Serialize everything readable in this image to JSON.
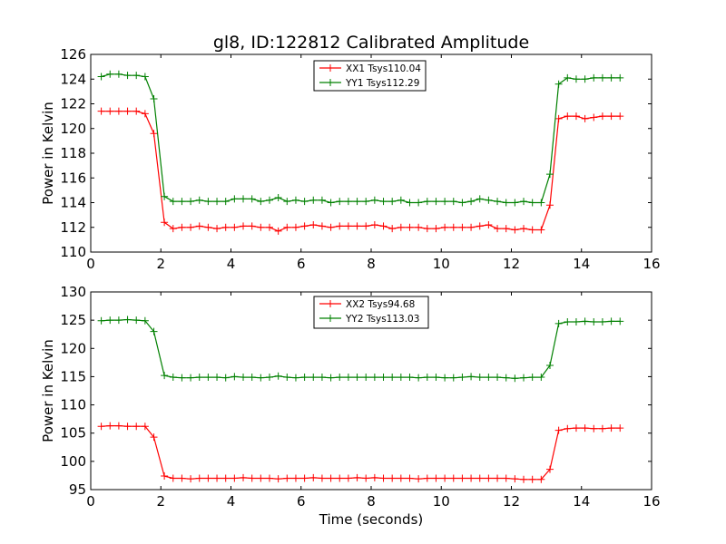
{
  "figure": {
    "title": "gl8, ID:122812 Calibrated Amplitude",
    "xlabel": "Time (seconds)"
  },
  "chart_data": [
    {
      "type": "line",
      "ylabel": "Power in Kelvin",
      "xlim": [
        0,
        16
      ],
      "ylim": [
        110,
        126
      ],
      "xticks": [
        0,
        2,
        4,
        6,
        8,
        10,
        12,
        14,
        16
      ],
      "yticks": [
        110,
        112,
        114,
        116,
        118,
        120,
        122,
        124,
        126
      ],
      "grid": false,
      "legend_position": "top-center",
      "x": [
        0.3,
        0.55,
        0.8,
        1.05,
        1.3,
        1.55,
        1.8,
        2.1,
        2.35,
        2.6,
        2.85,
        3.1,
        3.35,
        3.6,
        3.85,
        4.1,
        4.35,
        4.6,
        4.85,
        5.1,
        5.35,
        5.6,
        5.85,
        6.1,
        6.35,
        6.6,
        6.85,
        7.1,
        7.35,
        7.6,
        7.85,
        8.1,
        8.35,
        8.6,
        8.85,
        9.1,
        9.35,
        9.6,
        9.85,
        10.1,
        10.35,
        10.6,
        10.85,
        11.1,
        11.35,
        11.6,
        11.85,
        12.1,
        12.35,
        12.6,
        12.85,
        13.1,
        13.35,
        13.6,
        13.85,
        14.1,
        14.35,
        14.6,
        14.85,
        15.1
      ],
      "series": [
        {
          "name": "XX1 Tsys110.04",
          "color": "#ff0000",
          "values": [
            121.4,
            121.4,
            121.4,
            121.4,
            121.4,
            121.2,
            119.6,
            112.4,
            111.9,
            112.0,
            112.0,
            112.1,
            112.0,
            111.9,
            112.0,
            112.0,
            112.1,
            112.1,
            112.0,
            112.0,
            111.7,
            112.0,
            112.0,
            112.1,
            112.2,
            112.1,
            112.0,
            112.1,
            112.1,
            112.1,
            112.1,
            112.2,
            112.1,
            111.9,
            112.0,
            112.0,
            112.0,
            111.9,
            111.9,
            112.0,
            112.0,
            112.0,
            112.0,
            112.1,
            112.2,
            111.9,
            111.9,
            111.8,
            111.9,
            111.8,
            111.8,
            113.8,
            120.8,
            121.0,
            121.0,
            120.8,
            120.9,
            121.0,
            121.0,
            121.0
          ]
        },
        {
          "name": "YY1 Tsys112.29",
          "color": "#008000",
          "values": [
            124.2,
            124.4,
            124.4,
            124.3,
            124.3,
            124.2,
            122.4,
            114.5,
            114.1,
            114.1,
            114.1,
            114.2,
            114.1,
            114.1,
            114.1,
            114.3,
            114.3,
            114.3,
            114.1,
            114.2,
            114.4,
            114.1,
            114.2,
            114.1,
            114.2,
            114.2,
            114.0,
            114.1,
            114.1,
            114.1,
            114.1,
            114.2,
            114.1,
            114.1,
            114.2,
            114.0,
            114.0,
            114.1,
            114.1,
            114.1,
            114.1,
            114.0,
            114.1,
            114.3,
            114.2,
            114.1,
            114.0,
            114.0,
            114.1,
            114.0,
            114.0,
            116.3,
            123.6,
            124.1,
            124.0,
            124.0,
            124.1,
            124.1,
            124.1,
            124.1
          ]
        }
      ]
    },
    {
      "type": "line",
      "ylabel": "Power in Kelvin",
      "xlim": [
        0,
        16
      ],
      "ylim": [
        95,
        130
      ],
      "xticks": [
        0,
        2,
        4,
        6,
        8,
        10,
        12,
        14,
        16
      ],
      "yticks": [
        95,
        100,
        105,
        110,
        115,
        120,
        125,
        130
      ],
      "grid": false,
      "legend_position": "top-center",
      "x": [
        0.3,
        0.55,
        0.8,
        1.05,
        1.3,
        1.55,
        1.8,
        2.1,
        2.35,
        2.6,
        2.85,
        3.1,
        3.35,
        3.6,
        3.85,
        4.1,
        4.35,
        4.6,
        4.85,
        5.1,
        5.35,
        5.6,
        5.85,
        6.1,
        6.35,
        6.6,
        6.85,
        7.1,
        7.35,
        7.6,
        7.85,
        8.1,
        8.35,
        8.6,
        8.85,
        9.1,
        9.35,
        9.6,
        9.85,
        10.1,
        10.35,
        10.6,
        10.85,
        11.1,
        11.35,
        11.6,
        11.85,
        12.1,
        12.35,
        12.6,
        12.85,
        13.1,
        13.35,
        13.6,
        13.85,
        14.1,
        14.35,
        14.6,
        14.85,
        15.1
      ],
      "series": [
        {
          "name": "XX2 Tsys94.68",
          "color": "#ff0000",
          "values": [
            106.2,
            106.3,
            106.3,
            106.2,
            106.2,
            106.2,
            104.3,
            97.4,
            97.0,
            97.0,
            96.9,
            97.0,
            97.0,
            97.0,
            97.0,
            97.0,
            97.1,
            97.0,
            97.0,
            97.0,
            96.9,
            97.0,
            97.0,
            97.0,
            97.1,
            97.0,
            97.0,
            97.0,
            97.0,
            97.1,
            97.0,
            97.1,
            97.0,
            97.0,
            97.0,
            97.0,
            96.9,
            97.0,
            97.0,
            97.0,
            97.0,
            97.0,
            97.0,
            97.0,
            97.0,
            97.0,
            97.0,
            96.9,
            96.8,
            96.8,
            96.8,
            98.6,
            105.5,
            105.8,
            105.9,
            105.9,
            105.8,
            105.8,
            105.9,
            105.9
          ]
        },
        {
          "name": "YY2 Tsys113.03",
          "color": "#008000",
          "values": [
            124.9,
            125.0,
            125.0,
            125.1,
            125.0,
            124.9,
            123.0,
            115.2,
            114.9,
            114.8,
            114.8,
            114.9,
            114.9,
            114.9,
            114.8,
            115.0,
            114.9,
            114.9,
            114.8,
            114.9,
            115.1,
            114.9,
            114.8,
            114.9,
            114.9,
            114.9,
            114.8,
            114.9,
            114.9,
            114.9,
            114.9,
            114.9,
            114.9,
            114.9,
            114.9,
            114.9,
            114.8,
            114.9,
            114.9,
            114.8,
            114.8,
            114.9,
            115.0,
            114.9,
            114.9,
            114.9,
            114.8,
            114.7,
            114.8,
            114.9,
            114.9,
            117.0,
            124.4,
            124.7,
            124.7,
            124.8,
            124.7,
            124.7,
            124.8,
            124.8
          ]
        }
      ]
    }
  ]
}
